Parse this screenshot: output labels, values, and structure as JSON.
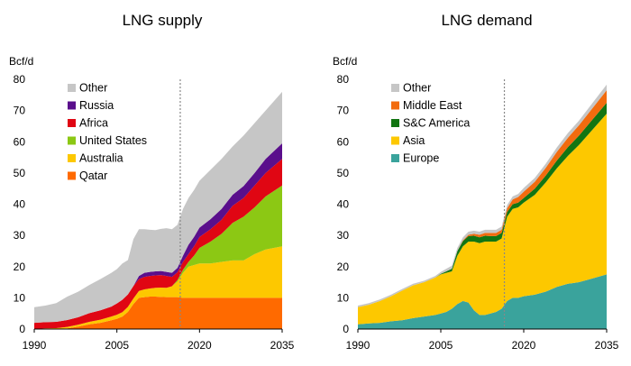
{
  "colors": {
    "other": "#c6c6c6",
    "russia": "#5a0f8c",
    "africa": "#e00613",
    "united_states": "#8cc814",
    "australia": "#fdc800",
    "qatar": "#ff6a00",
    "middle_east": "#f26b0e",
    "sc_america": "#127512",
    "asia": "#fdc800",
    "europe": "#3aa39c",
    "divider": "#888888"
  },
  "chart_data": [
    {
      "type": "area",
      "stacked": true,
      "title": "LNG supply",
      "ylabel": "Bcf/d",
      "xlim": [
        1990,
        2035
      ],
      "ylim": [
        0,
        80
      ],
      "xticks": [
        1990,
        2005,
        2020,
        2035
      ],
      "yticks": [
        0,
        10,
        20,
        30,
        40,
        50,
        60,
        70,
        80
      ],
      "divider_x": 2016.5,
      "legend_position": "top-left",
      "legend_order": [
        "Other",
        "Russia",
        "Africa",
        "United States",
        "Australia",
        "Qatar"
      ],
      "x": [
        1990,
        1992,
        1994,
        1996,
        1998,
        2000,
        2002,
        2004,
        2005,
        2006,
        2007,
        2008,
        2009,
        2010,
        2011,
        2012,
        2013,
        2014,
        2015,
        2016,
        2017,
        2018,
        2019,
        2020,
        2022,
        2024,
        2026,
        2028,
        2030,
        2032,
        2035
      ],
      "series": [
        {
          "name": "Qatar",
          "color_key": "qatar",
          "values": [
            0,
            0,
            0,
            0.2,
            0.8,
            1.5,
            2.0,
            2.8,
            3.3,
            4.0,
            5.5,
            8.0,
            10.0,
            10.2,
            10.4,
            10.4,
            10.3,
            10.2,
            10.2,
            10.2,
            10.0,
            10.0,
            10.0,
            10.0,
            10.0,
            10.0,
            10.0,
            10.0,
            10.0,
            10.0,
            10.0
          ]
        },
        {
          "name": "Australia",
          "color_key": "australia",
          "values": [
            0,
            0.2,
            0.3,
            0.5,
            0.6,
            0.8,
            1.0,
            1.2,
            1.3,
            1.4,
            1.6,
            1.8,
            2.2,
            2.5,
            2.6,
            2.8,
            3.0,
            3.0,
            3.5,
            5.0,
            8.0,
            10.0,
            10.5,
            11.0,
            11.0,
            11.5,
            12.0,
            12.0,
            14.0,
            15.5,
            16.5
          ]
        },
        {
          "name": "United States",
          "color_key": "united_states",
          "values": [
            0,
            0,
            0,
            0,
            0,
            0,
            0,
            0,
            0,
            0,
            0,
            0,
            0,
            0,
            0,
            0,
            0,
            0,
            0,
            0.5,
            1.0,
            1.5,
            3.0,
            5.0,
            7.0,
            9.0,
            12.0,
            14.0,
            15.0,
            17.0,
            19.5
          ]
        },
        {
          "name": "Africa",
          "color_key": "africa",
          "values": [
            2.0,
            2.0,
            2.0,
            2.2,
            2.4,
            2.8,
            3.0,
            3.2,
            3.6,
            4.0,
            4.0,
            4.0,
            3.8,
            4.0,
            4.0,
            4.0,
            4.0,
            3.8,
            3.0,
            2.5,
            2.5,
            2.5,
            3.0,
            3.5,
            4.0,
            4.5,
            5.5,
            6.0,
            7.0,
            7.5,
            8.5
          ]
        },
        {
          "name": "Russia",
          "color_key": "russia",
          "values": [
            0,
            0,
            0,
            0,
            0,
            0,
            0,
            0,
            0,
            0,
            0,
            0,
            1.0,
            1.3,
            1.3,
            1.3,
            1.3,
            1.3,
            1.3,
            1.4,
            2.0,
            3.0,
            3.0,
            3.0,
            3.2,
            3.5,
            3.5,
            3.8,
            4.0,
            4.5,
            5.0
          ]
        },
        {
          "name": "Other",
          "color_key": "other",
          "values": [
            5.0,
            5.3,
            6.0,
            7.5,
            8.2,
            9.0,
            10.0,
            10.8,
            11.0,
            11.6,
            11.0,
            15.0,
            15.0,
            14.0,
            13.5,
            13.2,
            13.5,
            14.0,
            14.0,
            13.8,
            15.0,
            15.0,
            15.0,
            15.0,
            15.8,
            16.0,
            15.5,
            16.2,
            16.0,
            15.5,
            16.5
          ]
        }
      ]
    },
    {
      "type": "area",
      "stacked": true,
      "title": "LNG demand",
      "ylabel": "Bcf/d",
      "xlim": [
        1990,
        2035
      ],
      "ylim": [
        0,
        80
      ],
      "xticks": [
        1990,
        2005,
        2020,
        2035
      ],
      "yticks": [
        0,
        10,
        20,
        30,
        40,
        50,
        60,
        70,
        80
      ],
      "divider_x": 2016.5,
      "legend_position": "top-left",
      "legend_order": [
        "Other",
        "Middle East",
        "S&C America",
        "Asia",
        "Europe"
      ],
      "x": [
        1990,
        1992,
        1994,
        1996,
        1998,
        2000,
        2002,
        2004,
        2005,
        2006,
        2007,
        2008,
        2009,
        2010,
        2011,
        2012,
        2013,
        2014,
        2015,
        2016,
        2017,
        2018,
        2019,
        2020,
        2022,
        2024,
        2026,
        2028,
        2030,
        2032,
        2035
      ],
      "series": [
        {
          "name": "Europe",
          "color_key": "europe",
          "values": [
            1.5,
            1.8,
            2.0,
            2.5,
            2.8,
            3.5,
            4.0,
            4.5,
            5.0,
            5.5,
            6.5,
            8.0,
            9.0,
            8.5,
            6.0,
            4.5,
            4.5,
            5.0,
            5.5,
            6.5,
            9.0,
            10.0,
            10.0,
            10.5,
            11.0,
            12.0,
            13.5,
            14.5,
            15.0,
            16.0,
            17.5
          ]
        },
        {
          "name": "Asia",
          "color_key": "asia",
          "values": [
            5.5,
            6.0,
            7.0,
            8.0,
            9.5,
            10.5,
            11.0,
            12.0,
            12.5,
            12.5,
            12.0,
            15.5,
            17.5,
            19.5,
            22.0,
            23.0,
            23.5,
            23.0,
            22.5,
            22.5,
            27.0,
            28.5,
            29.0,
            30.0,
            32.0,
            35.0,
            38.0,
            41.0,
            44.0,
            47.0,
            51.5
          ]
        },
        {
          "name": "S&C America",
          "color_key": "sc_america",
          "values": [
            0,
            0,
            0,
            0,
            0,
            0,
            0,
            0,
            0.2,
            0.5,
            0.8,
            1.5,
            1.7,
            1.8,
            1.9,
            1.9,
            1.9,
            1.8,
            1.8,
            1.8,
            1.5,
            1.5,
            1.5,
            1.5,
            2.0,
            2.2,
            2.5,
            2.8,
            3.0,
            3.2,
            3.5
          ]
        },
        {
          "name": "Middle East",
          "color_key": "middle_east",
          "values": [
            0,
            0,
            0,
            0,
            0,
            0,
            0,
            0,
            0,
            0,
            0,
            0,
            0.2,
            0.4,
            0.6,
            0.8,
            0.9,
            1.0,
            1.0,
            1.0,
            1.2,
            1.5,
            1.8,
            2.0,
            2.2,
            2.5,
            2.8,
            3.0,
            3.3,
            3.6,
            4.0
          ]
        },
        {
          "name": "Other",
          "color_key": "other",
          "values": [
            0.5,
            0.5,
            0.5,
            0.5,
            0.5,
            0.5,
            0.5,
            0.5,
            0.6,
            0.8,
            1.0,
            1.0,
            1.0,
            1.0,
            1.0,
            1.0,
            1.0,
            1.0,
            1.0,
            1.0,
            1.0,
            1.0,
            1.0,
            1.2,
            1.2,
            1.3,
            1.4,
            1.5,
            1.5,
            1.6,
            1.8
          ]
        }
      ]
    }
  ]
}
